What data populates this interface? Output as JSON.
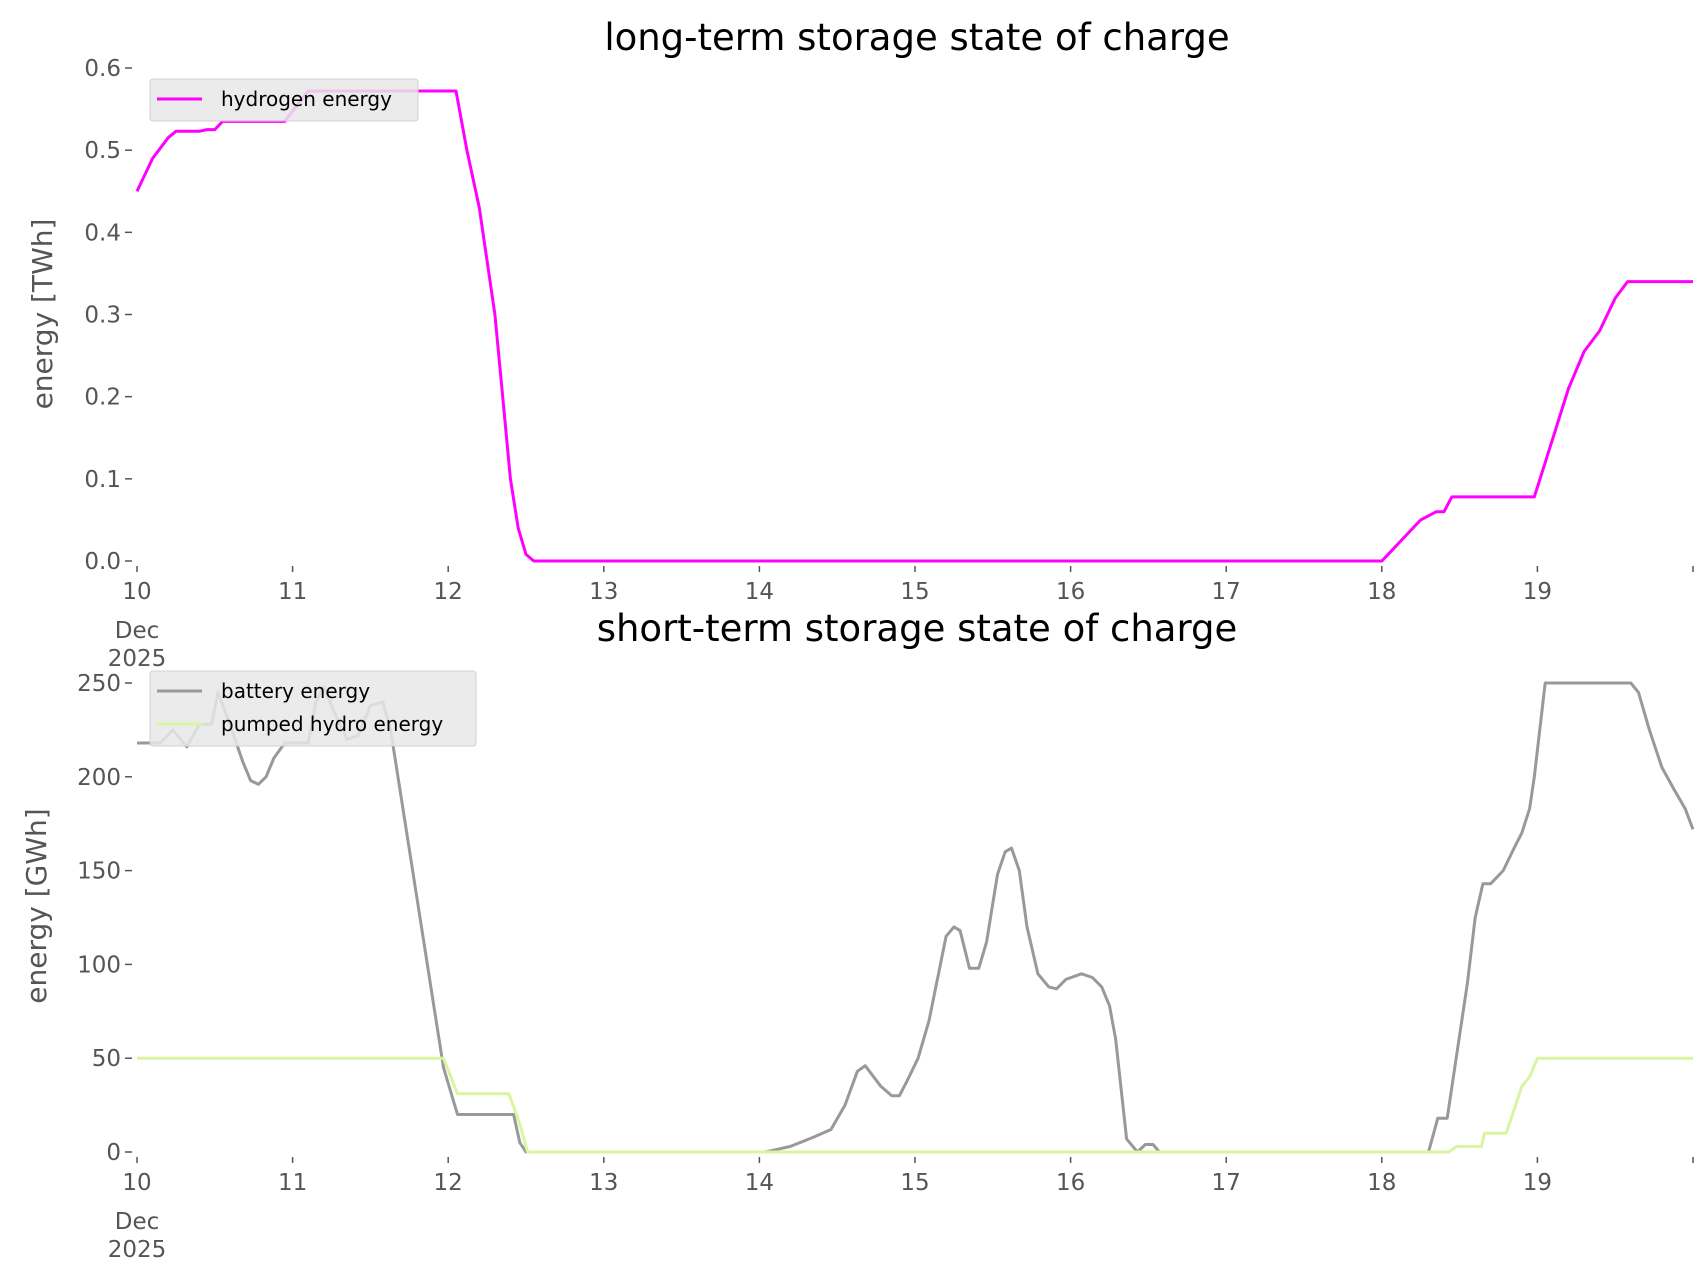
{
  "chart_data": [
    {
      "type": "line",
      "title": "long-term storage state of charge",
      "xlabel": "",
      "ylabel": "energy [TWh]",
      "xlim": [
        0,
        10
      ],
      "ylim": [
        0,
        0.6
      ],
      "x_unit": "days since 10 Dec 2025",
      "xticks": [
        0,
        1,
        2,
        3,
        4,
        5,
        6,
        7,
        8,
        9,
        10
      ],
      "xtick_labels": [
        "10",
        "11",
        "12",
        "13",
        "14",
        "15",
        "16",
        "17",
        "18",
        "19",
        ""
      ],
      "xtick_sublabels": [
        "Dec",
        "2025"
      ],
      "yticks": [
        0,
        0.1,
        0.2,
        0.3,
        0.4,
        0.5,
        0.6
      ],
      "ytick_labels": [
        "0.0",
        "0.1",
        "0.2",
        "0.3",
        "0.4",
        "0.5",
        "0.6"
      ],
      "grid": false,
      "legend_placement": "top-left",
      "series": [
        {
          "name": "hydrogen energy",
          "color": "#ff00ff",
          "x": [
            0,
            0.1,
            0.2,
            0.25,
            0.4,
            0.45,
            0.5,
            0.55,
            0.95,
            1.05,
            1.1,
            2.05,
            2.12,
            2.2,
            2.3,
            2.35,
            2.4,
            2.45,
            2.5,
            2.55,
            8.0,
            8.05,
            8.15,
            8.25,
            8.35,
            8.4,
            8.45,
            8.98,
            9.1,
            9.2,
            9.3,
            9.4,
            9.5,
            9.58,
            10
          ],
          "y": [
            0.45,
            0.49,
            0.515,
            0.523,
            0.523,
            0.525,
            0.525,
            0.535,
            0.535,
            0.56,
            0.572,
            0.572,
            0.5,
            0.43,
            0.3,
            0.2,
            0.1,
            0.04,
            0.008,
            0,
            0,
            0.01,
            0.03,
            0.05,
            0.06,
            0.06,
            0.078,
            0.078,
            0.15,
            0.21,
            0.255,
            0.28,
            0.32,
            0.34,
            0.34
          ]
        }
      ]
    },
    {
      "type": "line",
      "title": "short-term storage state of charge",
      "xlabel": "",
      "ylabel": "energy [GWh]",
      "xlim": [
        0,
        10
      ],
      "ylim": [
        0,
        250
      ],
      "x_unit": "days since 10 Dec 2025",
      "xticks": [
        0,
        1,
        2,
        3,
        4,
        5,
        6,
        7,
        8,
        9,
        10
      ],
      "xtick_labels": [
        "10",
        "11",
        "12",
        "13",
        "14",
        "15",
        "16",
        "17",
        "18",
        "19",
        ""
      ],
      "xtick_sublabels": [
        "Dec",
        "2025"
      ],
      "yticks": [
        0,
        50,
        100,
        150,
        200,
        250
      ],
      "ytick_labels": [
        "0",
        "50",
        "100",
        "150",
        "200",
        "250"
      ],
      "grid": false,
      "legend_placement": "top-left",
      "series": [
        {
          "name": "battery energy",
          "color": "#999999",
          "x": [
            0,
            0.15,
            0.23,
            0.32,
            0.4,
            0.48,
            0.52,
            0.58,
            0.68,
            0.73,
            0.78,
            0.83,
            0.88,
            0.95,
            1.1,
            1.15,
            1.2,
            1.28,
            1.35,
            1.42,
            1.5,
            1.58,
            1.63,
            1.97,
            2.06,
            2.42,
            2.46,
            2.5,
            4.04,
            4.2,
            4.35,
            4.46,
            4.55,
            4.63,
            4.68,
            4.78,
            4.85,
            4.9,
            4.95,
            5.02,
            5.09,
            5.2,
            5.25,
            5.29,
            5.35,
            5.41,
            5.46,
            5.53,
            5.58,
            5.62,
            5.67,
            5.72,
            5.79,
            5.86,
            5.91,
            5.97,
            6.07,
            6.14,
            6.2,
            6.25,
            6.29,
            6.36,
            6.43,
            6.48,
            6.53,
            6.57,
            8.3,
            8.36,
            8.42,
            8.55,
            8.6,
            8.65,
            8.7,
            8.78,
            8.85,
            8.9,
            8.95,
            8.98,
            9.05,
            9.6,
            9.65,
            9.72,
            9.8,
            9.88,
            9.95,
            10
          ],
          "y": [
            218,
            218,
            225,
            216,
            228,
            228,
            245,
            232,
            208,
            198,
            196,
            200,
            210,
            218,
            218,
            240,
            248,
            232,
            220,
            222,
            238,
            240,
            225,
            45,
            20,
            20,
            5,
            0,
            0,
            3,
            8,
            12,
            25,
            43,
            46,
            35,
            30,
            30,
            38,
            50,
            70,
            115,
            120,
            118,
            98,
            98,
            112,
            148,
            160,
            162,
            150,
            120,
            95,
            88,
            87,
            92,
            95,
            93,
            88,
            78,
            60,
            7,
            0,
            4,
            4,
            0,
            0,
            18,
            18,
            90,
            125,
            143,
            143,
            150,
            162,
            170,
            183,
            200,
            250,
            250,
            245,
            225,
            205,
            193,
            183,
            172
          ]
        },
        {
          "name": "pumped hydro energy",
          "color": "#d9f5a0",
          "x": [
            0,
            1.97,
            2.06,
            2.39,
            2.46,
            2.51,
            8.43,
            8.48,
            8.64,
            8.66,
            8.8,
            8.9,
            8.95,
            9.0,
            10
          ],
          "y": [
            50,
            50,
            31,
            31,
            15,
            0,
            0,
            3,
            3,
            10,
            10,
            35,
            40,
            50,
            50
          ]
        }
      ]
    }
  ]
}
